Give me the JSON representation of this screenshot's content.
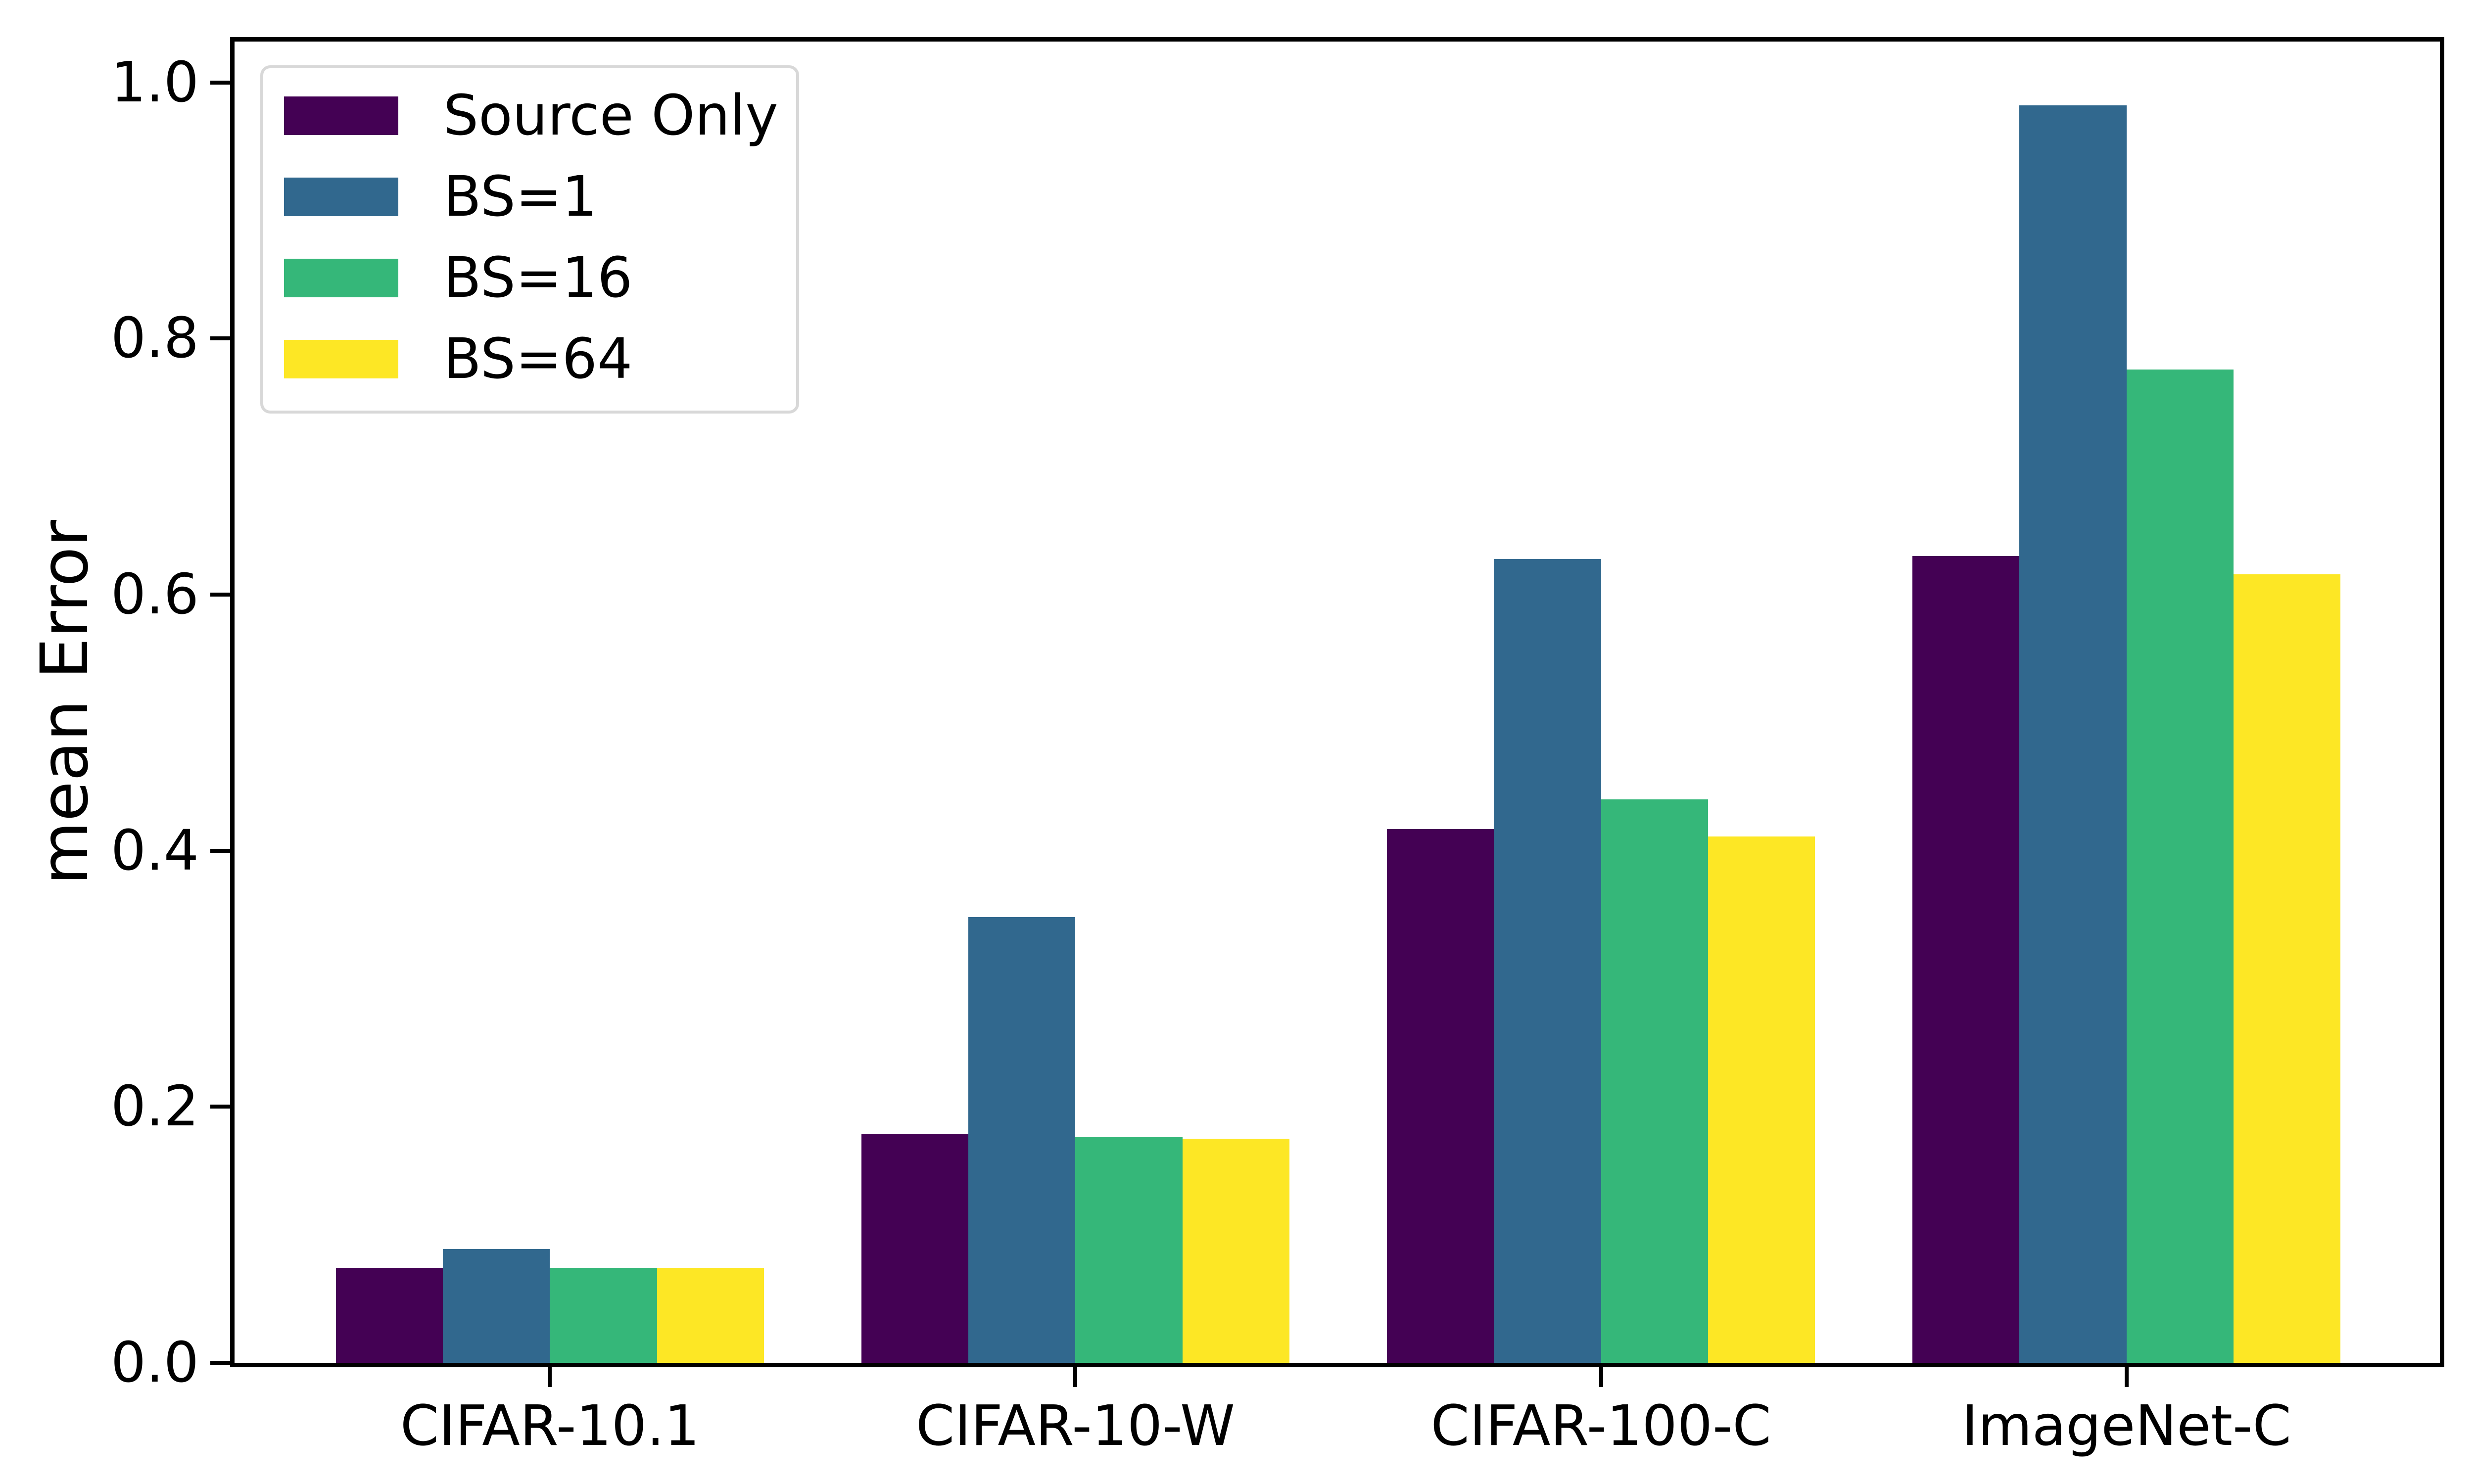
{
  "chart_data": {
    "type": "bar",
    "title": "",
    "xlabel": "",
    "ylabel": "mean Error",
    "categories": [
      "CIFAR-10.1",
      "CIFAR-10-W",
      "CIFAR-100-C",
      "ImageNet-C"
    ],
    "series": [
      {
        "name": "Source Only",
        "color": "#440154",
        "values": [
          0.074,
          0.179,
          0.417,
          0.63
        ]
      },
      {
        "name": "BS=1",
        "color": "#31688e",
        "values": [
          0.089,
          0.348,
          0.628,
          0.982
        ]
      },
      {
        "name": "BS=16",
        "color": "#35b779",
        "values": [
          0.074,
          0.176,
          0.44,
          0.776
        ]
      },
      {
        "name": "BS=64",
        "color": "#fde725",
        "values": [
          0.074,
          0.175,
          0.411,
          0.616
        ]
      }
    ],
    "y_axis": {
      "tick_labels": [
        "0.0",
        "0.2",
        "0.4",
        "0.6",
        "0.8",
        "1.0"
      ],
      "tick_values": [
        0.0,
        0.2,
        0.4,
        0.6,
        0.8,
        1.0
      ],
      "ylim": [
        0,
        1.032
      ]
    },
    "legend": {
      "position": "upper left"
    },
    "grid": false,
    "colors": {
      "axis": "#000000",
      "background": "#ffffff",
      "legend_border": "#d8d8d8"
    }
  }
}
